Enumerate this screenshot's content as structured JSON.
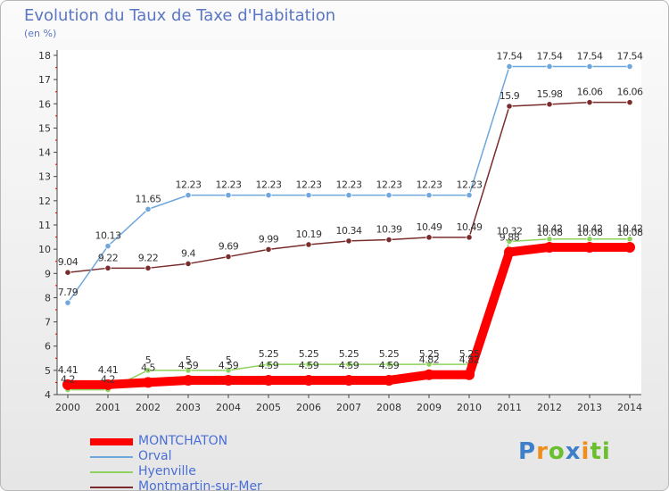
{
  "chart_data": {
    "type": "line",
    "title": "Evolution du Taux de Taxe d'Habitation",
    "subtitle": "(en %)",
    "x": [
      "2000",
      "2001",
      "2002",
      "2003",
      "2004",
      "2005",
      "2006",
      "2007",
      "2008",
      "2009",
      "2010",
      "2011",
      "2012",
      "2013",
      "2014"
    ],
    "ylim": [
      4,
      18
    ],
    "yticks": [
      4,
      5,
      6,
      7,
      8,
      9,
      10,
      11,
      12,
      13,
      14,
      15,
      16,
      17,
      18
    ],
    "grid": false,
    "legend_position": "bottom-left",
    "series": [
      {
        "name": "MONTCHATON",
        "color": "#ff0000",
        "values": [
          4.41,
          4.41,
          4.5,
          4.59,
          4.59,
          4.59,
          4.59,
          4.59,
          4.59,
          4.82,
          4.82,
          9.88,
          10.08,
          10.08,
          10.08
        ],
        "labels": [
          "4.41",
          "4.41",
          "4.5",
          "4.59",
          "4.59",
          "4.59",
          "4.59",
          "4.59",
          "4.59",
          "4.82",
          "4.82",
          "9.88",
          "10.08",
          "10.08",
          "10.08"
        ]
      },
      {
        "name": "Orval",
        "color": "#6fa7dc",
        "values": [
          7.79,
          10.13,
          11.65,
          12.23,
          12.23,
          12.23,
          12.23,
          12.23,
          12.23,
          12.23,
          12.23,
          17.54,
          17.54,
          17.54,
          17.54
        ],
        "labels": [
          "7.79",
          "10.13",
          "11.65",
          "12.23",
          "12.23",
          "12.23",
          "12.23",
          "12.23",
          "12.23",
          "12.23",
          "12.23",
          "17.54",
          "17.54",
          "17.54",
          "17.54"
        ]
      },
      {
        "name": "Hyenville",
        "color": "#8fd35e",
        "values": [
          4.2,
          4.2,
          5,
          5,
          5,
          5.25,
          5.25,
          5.25,
          5.25,
          5.25,
          5.25,
          10.32,
          10.42,
          10.42,
          10.42
        ],
        "labels": [
          "4.2",
          "4.2",
          "5",
          "5",
          "5",
          "5.25",
          "5.25",
          "5.25",
          "5.25",
          "5.25",
          "5.25",
          "10.32",
          "10.42",
          "10.42",
          "10.42"
        ]
      },
      {
        "name": "Montmartin-sur-Mer",
        "color": "#7a2c2c",
        "values": [
          9.04,
          9.22,
          9.22,
          9.4,
          9.69,
          9.99,
          10.19,
          10.34,
          10.39,
          10.49,
          10.49,
          15.9,
          15.98,
          16.06,
          16.06
        ],
        "labels": [
          "9.04",
          "9.22",
          "9.22",
          "9.4",
          "9.69",
          "9.99",
          "10.19",
          "10.34",
          "10.39",
          "10.49",
          "10.49",
          "15.9",
          "15.98",
          "16.06",
          "16.06"
        ]
      }
    ]
  },
  "logo": {
    "letters": [
      "P",
      "r",
      "o",
      "x",
      "i",
      "ti"
    ]
  }
}
